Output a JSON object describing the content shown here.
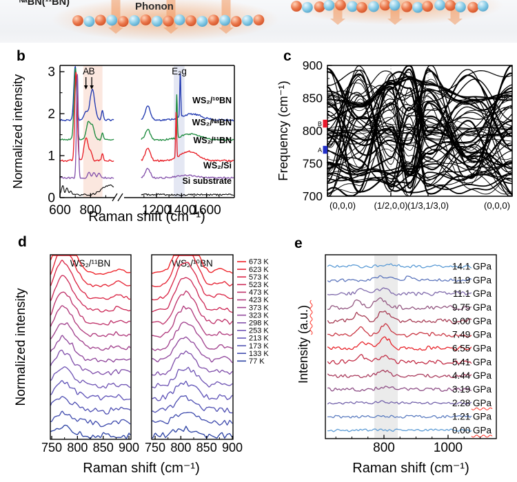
{
  "panels": {
    "b": {
      "letter": "b"
    },
    "c": {
      "letter": "c"
    },
    "d": {
      "letter": "d"
    },
    "e": {
      "letter": "e"
    }
  },
  "illustration": {
    "label": "ᴺᵃBN(¹¹BN)",
    "phonon_label": "Phonon",
    "boron_color": "#ea764a",
    "nitrogen_color": "#86cbe6",
    "arrow_color": "rgba(242,153,96,0.55)",
    "left_chain_atoms": 17,
    "right_chain_atoms": 18
  },
  "chart_data": [
    {
      "id": "b",
      "type": "line",
      "xlabel": "Raman shift (cm⁻¹)",
      "ylabel": "Normalized intensity",
      "yticks": [
        "0",
        "1",
        "2",
        "3"
      ],
      "xticks_left": [
        600,
        800
      ],
      "xticks_right": [
        1200,
        1400,
        1600
      ],
      "axis_break": true,
      "ylim": [
        0,
        3.15
      ],
      "xlim_left": [
        600,
        950
      ],
      "xlim_right": [
        1080,
        1815
      ],
      "bands": [
        {
          "x1": 753,
          "x2": 878,
          "color": "#fbe7df"
        },
        {
          "x1": 1338,
          "x2": 1424,
          "color": "#e4e7f3"
        }
      ],
      "peak_annotations": [
        {
          "text": "A",
          "x": 770
        },
        {
          "text": "B",
          "x": 808
        },
        {
          "text": "E₂g",
          "x": 1382
        }
      ],
      "series": [
        {
          "name": "WS₂/¹⁰BN",
          "color": "#2038b0",
          "offset": 1.85,
          "noise": 0.022,
          "seed": 11,
          "label_v": 2.25,
          "peaks": [
            [
              700,
              1.27,
              9
            ],
            [
              768,
              0.2,
              10
            ],
            [
              812,
              0.72,
              16
            ],
            [
              878,
              0.24,
              6
            ],
            [
              1130,
              0.34,
              20
            ],
            [
              1390,
              1.05,
              4
            ],
            [
              1480,
              0.14,
              80
            ]
          ]
        },
        {
          "name": "WS₂/ᴺᵃBN",
          "color": "#1b8a3c",
          "offset": 1.38,
          "noise": 0.022,
          "seed": 22,
          "label_v": 1.72,
          "peaks": [
            [
              701,
              1.72,
              9
            ],
            [
              785,
              0.42,
              13
            ],
            [
              813,
              0.3,
              12
            ],
            [
              878,
              0.16,
              6
            ],
            [
              1130,
              0.25,
              20
            ],
            [
              1362,
              1.0,
              4
            ],
            [
              1470,
              0.13,
              80
            ]
          ]
        },
        {
          "name": "WS₂/¹¹BN",
          "color": "#e81c24",
          "offset": 0.88,
          "noise": 0.022,
          "seed": 33,
          "label_v": 1.3,
          "peaks": [
            [
              705,
              2.12,
              8
            ],
            [
              770,
              0.55,
              13
            ],
            [
              800,
              0.22,
              10
            ],
            [
              878,
              0.16,
              6
            ],
            [
              1130,
              0.3,
              20
            ],
            [
              1357,
              1.1,
              4
            ],
            [
              1460,
              0.22,
              70
            ]
          ]
        },
        {
          "name": "WS₂/Si",
          "color": "#8451ab",
          "offset": 0.47,
          "noise": 0.02,
          "seed": 44,
          "label_v": 0.7,
          "peaks": [
            [
              714,
              2.46,
              6
            ],
            [
              790,
              0.12,
              9
            ],
            [
              822,
              0.12,
              9
            ],
            [
              855,
              0.1,
              9
            ],
            [
              1130,
              0.22,
              20
            ],
            [
              1450,
              0.06,
              80
            ]
          ]
        },
        {
          "name": "Si substrate",
          "color": "#000000",
          "offset": 0.07,
          "noise": 0.022,
          "seed": 55,
          "label_v": 0.33,
          "peaks": [
            [
              618,
              0.22,
              7
            ],
            [
              645,
              0.15,
              8
            ],
            [
              672,
              0.1,
              6
            ],
            [
              920,
              0.22,
              45
            ]
          ]
        }
      ]
    },
    {
      "id": "c",
      "type": "line",
      "ylabel": "Frequency (cm⁻¹)",
      "yticks": [
        700,
        750,
        800,
        850,
        900
      ],
      "ylim": [
        700,
        900
      ],
      "xticklabels": [
        "(0,0,0)",
        "(1/2,0,0)",
        "(1/3,1/3,0)",
        "(0,0,0)"
      ],
      "mode_markers": [
        {
          "text": "B",
          "color": "#e8192c",
          "y1": 805,
          "y2": 817
        },
        {
          "text": "A",
          "color": "#2330c8",
          "y1": 765,
          "y2": 777
        }
      ],
      "n_dispersion_lines": 46,
      "seed": 7
    },
    {
      "id": "d",
      "type": "line",
      "xlabel": "Raman shift (cm⁻¹)",
      "ylabel": "Normalized intensity",
      "xticks": [
        750,
        800,
        850,
        900
      ],
      "xlim": [
        743,
        912
      ],
      "subpanels": [
        {
          "title": "WS₂/¹¹BN",
          "seed": 101,
          "peaks": [
            [
              766,
              1.0,
              13
            ],
            [
              786,
              0.75,
              16
            ],
            [
              880,
              0.13,
              10
            ]
          ]
        },
        {
          "title": "WS₂/¹⁰BN",
          "seed": 202,
          "peaks": [
            [
              798,
              0.85,
              13
            ],
            [
              820,
              1.0,
              15
            ],
            [
              878,
              0.15,
              10
            ]
          ]
        }
      ],
      "legend": [
        {
          "label": "673 K",
          "color": "#ee1d23"
        },
        {
          "label": "623 K",
          "color": "#e52132"
        },
        {
          "label": "573 K",
          "color": "#da2545"
        },
        {
          "label": "523 K",
          "color": "#cd2b58"
        },
        {
          "label": "473 K",
          "color": "#bf326a"
        },
        {
          "label": "423 K",
          "color": "#b0397c"
        },
        {
          "label": "373 K",
          "color": "#a1418d"
        },
        {
          "label": "323 K",
          "color": "#91489d"
        },
        {
          "label": "298 K",
          "color": "#8150ab"
        },
        {
          "label": "253 K",
          "color": "#7156b5"
        },
        {
          "label": "213 K",
          "color": "#6054b8"
        },
        {
          "label": "173 K",
          "color": "#5051b3"
        },
        {
          "label": "133 K",
          "color": "#414dae"
        },
        {
          "label": "77 K",
          "color": "#2e44a4"
        }
      ]
    },
    {
      "id": "e",
      "type": "line",
      "xlabel": "Raman shift (cm⁻¹)",
      "ylabel_main": "Intensity ",
      "ylabel_unit": "(a.u.)",
      "xticks": [
        800,
        1000
      ],
      "xlim": [
        617,
        1150
      ],
      "shaded_band": [
        770,
        843
      ],
      "pressures": [
        {
          "value": "14.1",
          "unit": "GPa",
          "color": "#5b9bd5",
          "wavy": false,
          "noise": 2.4,
          "seed": 301,
          "peaks": [
            [
              820,
              3,
              25
            ]
          ]
        },
        {
          "value": "11.9",
          "unit": "GPa",
          "color": "#5b74bc",
          "wavy": false,
          "noise": 3.0,
          "seed": 302,
          "peaks": [
            [
              800,
              5,
              22
            ],
            [
              870,
              3,
              15
            ]
          ]
        },
        {
          "value": "11.1",
          "unit": "GPa",
          "color": "#7e68aa",
          "wavy": false,
          "noise": 3.4,
          "seed": 303,
          "peaks": [
            [
              730,
              5,
              16
            ],
            [
              795,
              7,
              20
            ]
          ]
        },
        {
          "value": "9.75",
          "unit": "GPa",
          "color": "#935781",
          "wavy": false,
          "noise": 3.4,
          "seed": 304,
          "peaks": [
            [
              715,
              9,
              14
            ],
            [
              790,
              11,
              20
            ]
          ]
        },
        {
          "value": "9.00",
          "unit": "GPa",
          "color": "#a63a52",
          "wavy": false,
          "noise": 3.8,
          "seed": 305,
          "peaks": [
            [
              720,
              12,
              13
            ],
            [
              800,
              14,
              18
            ]
          ]
        },
        {
          "value": "7.49",
          "unit": "GPa",
          "color": "#c93340",
          "wavy": false,
          "noise": 3.8,
          "seed": 306,
          "peaks": [
            [
              725,
              12,
              13
            ],
            [
              805,
              16,
              16
            ]
          ]
        },
        {
          "value": "6.55",
          "unit": "GPa",
          "color": "#e8232a",
          "wavy": false,
          "noise": 3.4,
          "seed": 307,
          "peaks": [
            [
              740,
              8,
              16
            ],
            [
              805,
              15,
              15
            ]
          ]
        },
        {
          "value": "5.41",
          "unit": "GPa",
          "color": "#c22b44",
          "wavy": false,
          "noise": 3.4,
          "seed": 308,
          "peaks": [
            [
              730,
              8,
              18
            ],
            [
              800,
              9,
              16
            ]
          ]
        },
        {
          "value": "4.44",
          "unit": "GPa",
          "color": "#a93a5c",
          "wavy": false,
          "noise": 3.0,
          "seed": 309,
          "peaks": [
            [
              800,
              6,
              18
            ]
          ]
        },
        {
          "value": "3.19",
          "unit": "GPa",
          "color": "#8d4d85",
          "wavy": false,
          "noise": 3.0,
          "seed": 310,
          "peaks": [
            [
              805,
              4,
              18
            ]
          ]
        },
        {
          "value": "2.28",
          "unit": "GPa",
          "color": "#7463ab",
          "wavy": true,
          "noise": 2.2,
          "seed": 311,
          "peaks": [
            [
              790,
              2,
              20
            ]
          ]
        },
        {
          "value": "1.21",
          "unit": "GPa",
          "color": "#5b7cc0",
          "wavy": false,
          "noise": 2.5,
          "seed": 312,
          "peaks": []
        },
        {
          "value": "0.00",
          "unit": "GPa",
          "color": "#5b9bd5",
          "wavy": true,
          "noise": 2.2,
          "seed": 313,
          "peaks": []
        }
      ]
    }
  ]
}
